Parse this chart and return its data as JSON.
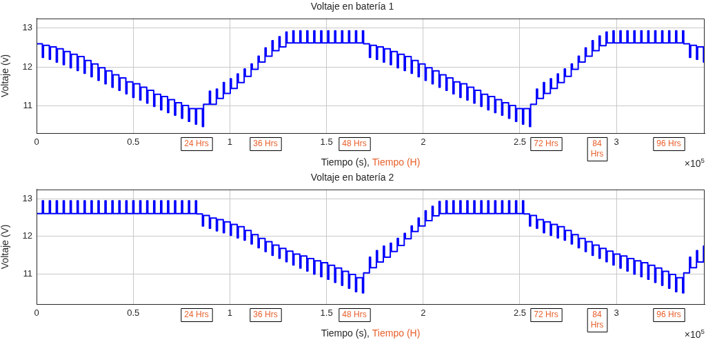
{
  "chart_data": [
    {
      "type": "step",
      "title": "Voltaje en batería 1",
      "xlabel": "Tiempo (s),",
      "ylabel": "Voltaje (v)",
      "grid": true,
      "marker": "none",
      "line_style": "solid",
      "xlim": [
        0,
        3.456
      ],
      "ylim": [
        10.3,
        13.25
      ],
      "yticks": [
        11,
        12,
        13
      ],
      "xticks": [
        0,
        0.5,
        1,
        1.5,
        2,
        2.5,
        3
      ],
      "annotations": [
        "Tiempo (H)",
        "×10$^{5}$",
        "24 Hrs",
        "36 Hrs",
        "48 Hrs",
        "72 Hrs",
        "84 Hrs",
        "96 Hrs"
      ],
      "x": [
        0,
        0.03,
        0.036,
        0.066,
        0.072,
        0.102,
        0.108,
        0.138,
        0.144,
        0.174,
        0.18,
        0.21,
        0.216,
        0.246,
        0.252,
        0.282,
        0.288,
        0.318,
        0.324,
        0.354,
        0.36,
        0.39,
        0.396,
        0.426,
        0.432,
        0.462,
        0.468,
        0.498,
        0.504,
        0.534,
        0.54,
        0.57,
        0.576,
        0.606,
        0.612,
        0.642,
        0.648,
        0.678,
        0.684,
        0.714,
        0.72,
        0.75,
        0.756,
        0.786,
        0.792,
        0.822,
        0.828,
        0.858,
        0.864,
        0.894,
        0.9,
        0.93,
        0.936,
        0.966,
        0.972,
        1.002,
        1.008,
        1.038,
        1.044,
        1.074,
        1.08,
        1.11,
        1.116,
        1.146,
        1.152,
        1.182,
        1.188,
        1.218,
        1.224,
        1.254,
        1.26,
        1.29,
        1.296,
        1.326,
        1.332,
        1.362,
        1.368,
        1.398,
        1.404,
        1.434,
        1.44,
        1.47,
        1.476,
        1.506,
        1.512,
        1.542,
        1.548,
        1.578,
        1.584,
        1.614,
        1.62,
        1.65,
        1.656,
        1.686,
        1.692,
        1.722,
        1.728,
        1.758,
        1.764,
        1.794,
        1.8,
        1.83,
        1.836,
        1.866,
        1.872,
        1.902,
        1.908,
        1.938,
        1.944,
        1.974,
        1.98,
        2.01,
        2.016,
        2.046,
        2.052,
        2.082,
        2.088,
        2.118,
        2.124,
        2.154,
        2.16,
        2.19,
        2.196,
        2.226,
        2.232,
        2.262,
        2.268,
        2.298,
        2.304,
        2.334,
        2.34,
        2.37,
        2.376,
        2.406,
        2.412,
        2.442,
        2.448,
        2.478,
        2.484,
        2.514,
        2.52,
        2.55,
        2.556,
        2.586,
        2.592,
        2.622,
        2.628,
        2.658,
        2.664,
        2.694,
        2.7,
        2.73,
        2.736,
        2.766,
        2.772,
        2.802,
        2.808,
        2.838,
        2.844,
        2.874,
        2.88,
        2.91,
        2.916,
        2.946,
        2.952,
        2.982,
        2.988,
        3.018,
        3.024,
        3.054,
        3.06,
        3.09,
        3.096,
        3.126,
        3.132,
        3.162,
        3.168,
        3.198,
        3.204,
        3.234,
        3.24,
        3.27,
        3.276,
        3.306,
        3.312,
        3.342,
        3.348,
        3.378,
        3.384,
        3.414,
        3.42,
        3.45,
        3.456
      ],
      "series": [
        {
          "color": "#0000ff",
          "values": [
            12.6,
            12.25,
            12.56,
            12.2,
            12.52,
            12.13,
            12.47,
            12.06,
            12.4,
            11.98,
            12.33,
            11.91,
            12.27,
            11.84,
            12.17,
            11.75,
            12.08,
            11.66,
            11.98,
            11.57,
            11.9,
            11.48,
            11.8,
            11.4,
            11.72,
            11.31,
            11.62,
            11.22,
            11.57,
            11.15,
            11.48,
            11.07,
            11.4,
            10.99,
            11.3,
            10.9,
            11.24,
            10.83,
            11.16,
            10.76,
            11.08,
            10.68,
            11.01,
            10.6,
            10.93,
            10.53,
            10.93,
            10.47,
            11.04,
            11.38,
            11.04,
            11.43,
            11.19,
            11.6,
            11.32,
            11.7,
            11.45,
            11.82,
            11.6,
            11.95,
            11.76,
            12.08,
            11.94,
            12.28,
            12.13,
            12.49,
            12.28,
            12.68,
            12.42,
            12.78,
            12.52,
            12.9,
            12.62,
            12.93,
            12.62,
            12.93,
            12.62,
            12.93,
            12.62,
            12.93,
            12.62,
            12.93,
            12.62,
            12.93,
            12.62,
            12.93,
            12.62,
            12.93,
            12.62,
            12.93,
            12.62,
            12.93,
            12.62,
            12.93,
            12.6,
            12.25,
            12.56,
            12.2,
            12.52,
            12.13,
            12.47,
            12.06,
            12.4,
            11.98,
            12.33,
            11.91,
            12.27,
            11.84,
            12.17,
            11.75,
            12.08,
            11.66,
            11.98,
            11.57,
            11.9,
            11.48,
            11.8,
            11.4,
            11.72,
            11.31,
            11.62,
            11.22,
            11.57,
            11.15,
            11.48,
            11.07,
            11.4,
            10.99,
            11.3,
            10.9,
            11.24,
            10.83,
            11.16,
            10.76,
            11.08,
            10.68,
            11.01,
            10.6,
            10.93,
            10.53,
            10.93,
            10.47,
            11.04,
            11.43,
            11.19,
            11.6,
            11.32,
            11.7,
            11.45,
            11.82,
            11.6,
            11.95,
            11.76,
            12.08,
            11.94,
            12.28,
            12.13,
            12.49,
            12.28,
            12.68,
            12.42,
            12.8,
            12.55,
            12.9,
            12.62,
            12.93,
            12.62,
            12.93,
            12.62,
            12.93,
            12.62,
            12.93,
            12.62,
            12.93,
            12.62,
            12.93,
            12.62,
            12.93,
            12.62,
            12.93,
            12.62,
            12.93,
            12.62,
            12.93,
            12.62,
            12.93,
            12.6,
            12.25,
            12.56,
            12.2,
            12.52,
            12.13,
            12.13
          ]
        }
      ]
    },
    {
      "type": "step",
      "title": "Voltaje en batería 2",
      "xlabel": "Tiempo (s),",
      "ylabel": "Voltaje (V)",
      "grid": true,
      "marker": "none",
      "line_style": "solid",
      "xlim": [
        0,
        3.456
      ],
      "ylim": [
        10.2,
        13.25
      ],
      "yticks": [
        11,
        12,
        13
      ],
      "xticks": [
        0,
        0.5,
        1,
        1.5,
        2,
        2.5,
        3
      ],
      "annotations": [
        "Tiempo (H)",
        "×10$^{5}$",
        "24 Hrs",
        "36 Hrs",
        "48 Hrs",
        "72 Hrs",
        "84 Hrs",
        "96 Hrs"
      ],
      "x": [
        0,
        0.03,
        0.036,
        0.066,
        0.072,
        0.102,
        0.108,
        0.138,
        0.144,
        0.174,
        0.18,
        0.21,
        0.216,
        0.246,
        0.252,
        0.282,
        0.288,
        0.318,
        0.324,
        0.354,
        0.36,
        0.39,
        0.396,
        0.426,
        0.432,
        0.462,
        0.468,
        0.498,
        0.504,
        0.534,
        0.54,
        0.57,
        0.576,
        0.606,
        0.612,
        0.642,
        0.648,
        0.678,
        0.684,
        0.714,
        0.72,
        0.75,
        0.756,
        0.786,
        0.792,
        0.822,
        0.828,
        0.858,
        0.864,
        0.894,
        0.9,
        0.93,
        0.936,
        0.966,
        0.972,
        1.002,
        1.008,
        1.038,
        1.044,
        1.074,
        1.08,
        1.11,
        1.116,
        1.146,
        1.152,
        1.182,
        1.188,
        1.218,
        1.224,
        1.254,
        1.26,
        1.29,
        1.296,
        1.326,
        1.332,
        1.362,
        1.368,
        1.398,
        1.404,
        1.434,
        1.44,
        1.47,
        1.476,
        1.506,
        1.512,
        1.542,
        1.548,
        1.578,
        1.584,
        1.614,
        1.62,
        1.65,
        1.656,
        1.686,
        1.692,
        1.722,
        1.728,
        1.758,
        1.764,
        1.794,
        1.8,
        1.83,
        1.836,
        1.866,
        1.872,
        1.902,
        1.908,
        1.938,
        1.944,
        1.974,
        1.98,
        2.01,
        2.016,
        2.046,
        2.052,
        2.082,
        2.088,
        2.118,
        2.124,
        2.154,
        2.16,
        2.19,
        2.196,
        2.226,
        2.232,
        2.262,
        2.268,
        2.298,
        2.304,
        2.334,
        2.34,
        2.37,
        2.376,
        2.406,
        2.412,
        2.442,
        2.448,
        2.478,
        2.484,
        2.514,
        2.52,
        2.55,
        2.556,
        2.586,
        2.592,
        2.622,
        2.628,
        2.658,
        2.664,
        2.694,
        2.7,
        2.73,
        2.736,
        2.766,
        2.772,
        2.802,
        2.808,
        2.838,
        2.844,
        2.874,
        2.88,
        2.91,
        2.916,
        2.946,
        2.952,
        2.982,
        2.988,
        3.018,
        3.024,
        3.054,
        3.06,
        3.09,
        3.096,
        3.126,
        3.132,
        3.162,
        3.168,
        3.198,
        3.204,
        3.234,
        3.24,
        3.27,
        3.276,
        3.306,
        3.312,
        3.342,
        3.348,
        3.378,
        3.384,
        3.414,
        3.42,
        3.45,
        3.456
      ],
      "series": [
        {
          "color": "#0000ff",
          "values": [
            12.61,
            12.95,
            12.61,
            12.95,
            12.61,
            12.95,
            12.61,
            12.95,
            12.61,
            12.95,
            12.61,
            12.95,
            12.61,
            12.95,
            12.61,
            12.95,
            12.61,
            12.95,
            12.61,
            12.95,
            12.61,
            12.95,
            12.61,
            12.95,
            12.61,
            12.95,
            12.61,
            12.95,
            12.61,
            12.95,
            12.61,
            12.95,
            12.61,
            12.95,
            12.61,
            12.95,
            12.61,
            12.95,
            12.61,
            12.95,
            12.61,
            12.95,
            12.61,
            12.95,
            12.61,
            12.95,
            12.6,
            12.28,
            12.56,
            12.22,
            12.49,
            12.15,
            12.45,
            12.1,
            12.39,
            12.03,
            12.32,
            11.96,
            12.26,
            11.9,
            12.16,
            11.8,
            12.05,
            11.7,
            11.95,
            11.6,
            11.86,
            11.5,
            11.77,
            11.42,
            11.68,
            11.33,
            11.61,
            11.24,
            11.53,
            11.16,
            11.48,
            11.08,
            11.41,
            11.0,
            11.35,
            10.93,
            11.3,
            10.86,
            11.23,
            10.78,
            11.16,
            10.7,
            11.07,
            10.62,
            10.99,
            10.53,
            10.9,
            10.5,
            11.03,
            11.45,
            11.17,
            11.62,
            11.32,
            11.74,
            11.45,
            11.82,
            11.6,
            11.95,
            11.76,
            12.08,
            11.94,
            12.28,
            12.13,
            12.49,
            12.28,
            12.68,
            12.42,
            12.8,
            12.55,
            12.93,
            12.61,
            12.95,
            12.61,
            12.95,
            12.61,
            12.95,
            12.61,
            12.95,
            12.61,
            12.95,
            12.61,
            12.95,
            12.61,
            12.95,
            12.61,
            12.95,
            12.61,
            12.95,
            12.61,
            12.95,
            12.61,
            12.95,
            12.61,
            12.95,
            12.6,
            12.28,
            12.56,
            12.22,
            12.45,
            12.1,
            12.39,
            12.03,
            12.32,
            11.96,
            12.26,
            11.9,
            12.16,
            11.8,
            12.05,
            11.7,
            11.95,
            11.6,
            11.86,
            11.5,
            11.77,
            11.42,
            11.68,
            11.33,
            11.61,
            11.24,
            11.53,
            11.16,
            11.48,
            11.08,
            11.41,
            11.0,
            11.35,
            10.93,
            11.3,
            10.86,
            11.23,
            10.78,
            11.16,
            10.7,
            11.07,
            10.62,
            10.99,
            10.53,
            10.9,
            10.5,
            11.03,
            11.45,
            11.17,
            11.62,
            11.32,
            11.74,
            11.74
          ]
        }
      ]
    }
  ]
}
